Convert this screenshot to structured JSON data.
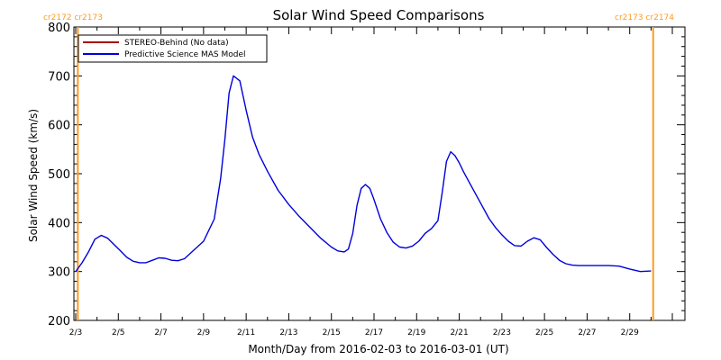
{
  "chart_data": {
    "type": "line",
    "title": "Solar Wind Speed Comparisons",
    "xlabel": "Month/Day from 2016-02-03 to 2016-03-01 (UT)",
    "ylabel": "Solar Wind Speed (km/s)",
    "ylim": [
      200,
      800
    ],
    "xlim_days": [
      0,
      28
    ],
    "x_ticks": [
      {
        "day": 0,
        "label": "2/3"
      },
      {
        "day": 2,
        "label": "2/5"
      },
      {
        "day": 4,
        "label": "2/7"
      },
      {
        "day": 6,
        "label": "2/9"
      },
      {
        "day": 8,
        "label": "2/11"
      },
      {
        "day": 10,
        "label": "2/13"
      },
      {
        "day": 12,
        "label": "2/15"
      },
      {
        "day": 14,
        "label": "2/17"
      },
      {
        "day": 16,
        "label": "2/19"
      },
      {
        "day": 18,
        "label": "2/21"
      },
      {
        "day": 20,
        "label": "2/23"
      },
      {
        "day": 22,
        "label": "2/25"
      },
      {
        "day": 24,
        "label": "2/27"
      },
      {
        "day": 26,
        "label": "2/29"
      }
    ],
    "y_ticks": [
      200,
      300,
      400,
      500,
      600,
      700,
      800
    ],
    "cr_markers": [
      {
        "day": 0.1,
        "label": "cr2172 cr2173",
        "align": "left"
      },
      {
        "day": 27.1,
        "label": "cr2173 cr2174",
        "align": "right"
      }
    ],
    "legend_position": "top-left",
    "series": [
      {
        "name": "STEREO-Behind (No data)",
        "color": "#aa0000",
        "x": [],
        "y": []
      },
      {
        "name": "Predictive Science MAS Model",
        "color": "#0000dd",
        "x": [
          0.0,
          0.3,
          0.6,
          0.9,
          1.2,
          1.5,
          1.8,
          2.1,
          2.4,
          2.7,
          3.0,
          3.3,
          3.6,
          3.9,
          4.2,
          4.5,
          4.8,
          5.1,
          5.4,
          5.7,
          6.0,
          6.2,
          6.5,
          6.8,
          7.0,
          7.2,
          7.4,
          7.7,
          8.0,
          8.3,
          8.6,
          9.0,
          9.5,
          10.0,
          10.5,
          11.0,
          11.5,
          12.0,
          12.3,
          12.6,
          12.8,
          13.0,
          13.2,
          13.4,
          13.6,
          13.8,
          14.0,
          14.3,
          14.6,
          14.9,
          15.2,
          15.5,
          15.8,
          16.1,
          16.4,
          16.7,
          17.0,
          17.2,
          17.4,
          17.6,
          17.8,
          18.0,
          18.2,
          18.5,
          18.8,
          19.1,
          19.4,
          19.7,
          20.0,
          20.3,
          20.6,
          20.9,
          21.2,
          21.5,
          21.8,
          22.1,
          22.4,
          22.7,
          23.0,
          23.3,
          23.6,
          24.0,
          24.5,
          25.0,
          25.5,
          26.0,
          26.5,
          27.0
        ],
        "y": [
          300,
          318,
          340,
          366,
          374,
          368,
          355,
          342,
          329,
          321,
          318,
          318,
          323,
          328,
          327,
          323,
          322,
          326,
          338,
          350,
          362,
          380,
          407,
          490,
          570,
          665,
          700,
          690,
          630,
          575,
          540,
          505,
          466,
          437,
          412,
          390,
          368,
          350,
          342,
          340,
          346,
          378,
          435,
          470,
          478,
          470,
          447,
          408,
          380,
          360,
          350,
          348,
          352,
          362,
          378,
          388,
          404,
          462,
          525,
          545,
          537,
          522,
          504,
          480,
          456,
          432,
          408,
          390,
          375,
          362,
          353,
          352,
          362,
          369,
          365,
          349,
          335,
          323,
          316,
          313,
          312,
          312,
          312,
          312,
          311,
          305,
          300,
          301
        ]
      }
    ]
  }
}
